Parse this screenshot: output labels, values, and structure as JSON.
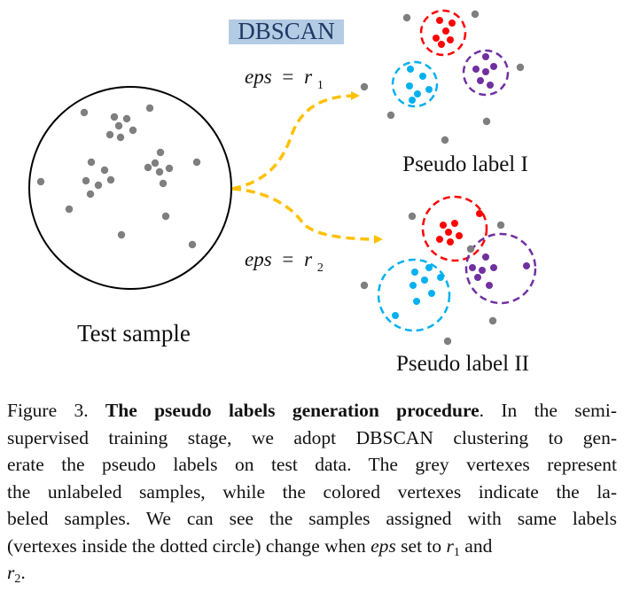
{
  "diagram": {
    "dbscan_label": "DBSCAN",
    "eps1_label": {
      "var": "eps",
      "eq": "=",
      "sym": "r",
      "sub": "1"
    },
    "eps2_label": {
      "var": "eps",
      "eq": "=",
      "sym": "r",
      "sub": "2"
    },
    "test_sample_label": "Test sample",
    "pseudo_label_1": "Pseudo label I",
    "pseudo_label_2": "Pseudo label II",
    "colors": {
      "grey": "#7f7f7f",
      "red": "#ff0000",
      "blue": "#00b0f0",
      "purple": "#7030a0",
      "arrow": "#ffc000",
      "highlight": "#b4cbe4",
      "dbscan_text": "#1f3864"
    }
  },
  "caption": {
    "lines": [
      {
        "parts": [
          {
            "t": "Figure 3. ",
            "b": false
          },
          {
            "t": "The pseudo labels generation procedure",
            "b": true
          },
          {
            "t": ". In the semi-",
            "b": false
          }
        ]
      },
      {
        "parts": [
          {
            "t": "supervised training stage, we adopt DBSCAN clustering to gen-"
          }
        ]
      },
      {
        "parts": [
          {
            "t": "erate the pseudo labels on test data. The grey vertexes represent"
          }
        ]
      },
      {
        "parts": [
          {
            "t": "the unlabeled samples, while the colored vertexes indicate the la-"
          }
        ]
      },
      {
        "parts": [
          {
            "t": "beled samples. We can see the samples assigned with same labels"
          }
        ]
      },
      {
        "parts": [
          {
            "t": "(vertexes inside the dotted circle) change when "
          },
          {
            "t": "eps",
            "i": true
          },
          {
            "t": " set to "
          },
          {
            "t": "r",
            "i": true
          },
          {
            "t": "1",
            "sub": true
          },
          {
            "t": " and"
          }
        ]
      },
      {
        "parts": [
          {
            "t": "r",
            "i": true
          },
          {
            "t": "2",
            "sub": true
          },
          {
            "t": "."
          }
        ]
      }
    ]
  }
}
